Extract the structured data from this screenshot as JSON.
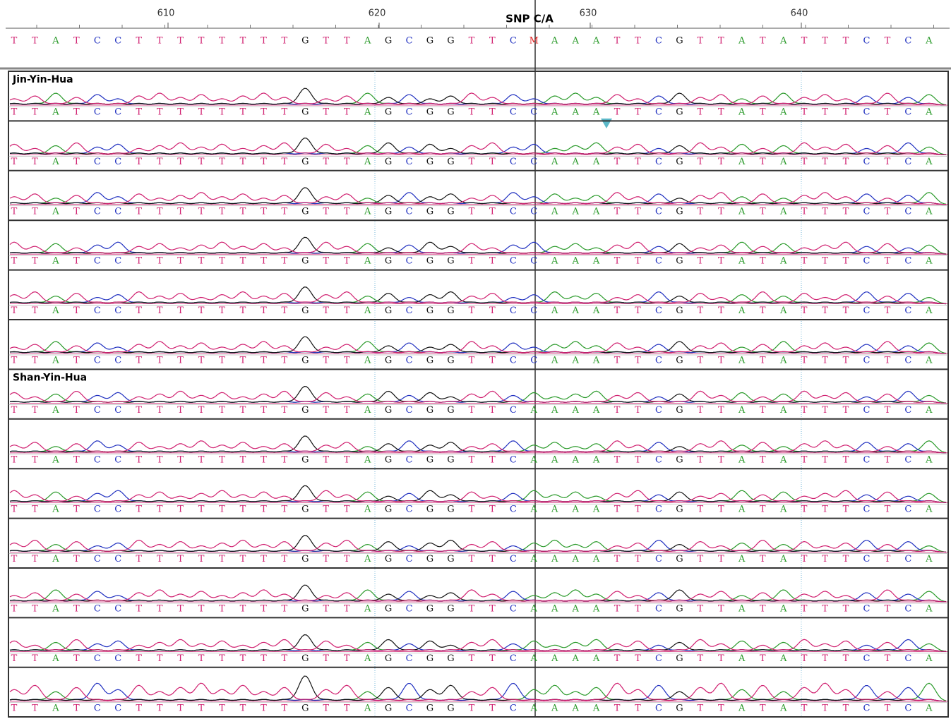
{
  "ruler": {
    "ticks": [
      610,
      620,
      630,
      640
    ],
    "snp_label": "SNP C/A"
  },
  "consensus": [
    "T",
    "T",
    "A",
    "T",
    "C",
    "C",
    "T",
    "T",
    "T",
    "T",
    "T",
    "T",
    "T",
    "T",
    "G",
    "T",
    "T",
    "A",
    "G",
    "C",
    "G",
    "G",
    "T",
    "T",
    "C",
    "M",
    "A",
    "A",
    "A",
    "T",
    "T",
    "C",
    "G",
    "T",
    "T",
    "A",
    "T",
    "A",
    "T",
    "T",
    "T",
    "C",
    "T",
    "C",
    "A"
  ],
  "rows": [
    {
      "group": "Jin-Yin-Hua",
      "bases": [
        "T",
        "T",
        "A",
        "T",
        "C",
        "C",
        "T",
        "T",
        "T",
        "T",
        "T",
        "T",
        "T",
        "T",
        "G",
        "T",
        "T",
        "A",
        "G",
        "C",
        "G",
        "G",
        "T",
        "T",
        "C",
        "C",
        "A",
        "A",
        "A",
        "T",
        "T",
        "C",
        "G",
        "T",
        "T",
        "A",
        "T",
        "A",
        "T",
        "T",
        "T",
        "C",
        "T",
        "C",
        "A"
      ]
    },
    {
      "bases": [
        "T",
        "T",
        "A",
        "T",
        "C",
        "C",
        "T",
        "T",
        "T",
        "T",
        "T",
        "T",
        "T",
        "T",
        "G",
        "T",
        "T",
        "A",
        "G",
        "C",
        "G",
        "G",
        "T",
        "T",
        "C",
        "C",
        "A",
        "A",
        "A",
        "T",
        "T",
        "C",
        "G",
        "T",
        "T",
        "A",
        "T",
        "A",
        "T",
        "T",
        "T",
        "C",
        "T",
        "C",
        "A"
      ]
    },
    {
      "bases": [
        "T",
        "T",
        "A",
        "T",
        "C",
        "C",
        "T",
        "T",
        "T",
        "T",
        "T",
        "T",
        "T",
        "T",
        "G",
        "T",
        "T",
        "A",
        "G",
        "C",
        "G",
        "G",
        "T",
        "T",
        "C",
        "C",
        "A",
        "A",
        "A",
        "T",
        "T",
        "C",
        "G",
        "T",
        "T",
        "A",
        "T",
        "A",
        "T",
        "T",
        "T",
        "C",
        "T",
        "C",
        "A"
      ]
    },
    {
      "bases": [
        "T",
        "T",
        "A",
        "T",
        "C",
        "C",
        "T",
        "T",
        "T",
        "T",
        "T",
        "T",
        "T",
        "T",
        "G",
        "T",
        "T",
        "A",
        "G",
        "C",
        "G",
        "G",
        "T",
        "T",
        "C",
        "C",
        "A",
        "A",
        "A",
        "T",
        "T",
        "C",
        "G",
        "T",
        "T",
        "A",
        "T",
        "A",
        "T",
        "T",
        "T",
        "C",
        "T",
        "C",
        "A"
      ]
    },
    {
      "bases": [
        "T",
        "T",
        "A",
        "T",
        "C",
        "C",
        "T",
        "T",
        "T",
        "T",
        "T",
        "T",
        "T",
        "T",
        "G",
        "T",
        "T",
        "A",
        "G",
        "C",
        "G",
        "G",
        "T",
        "T",
        "C",
        "C",
        "A",
        "A",
        "A",
        "T",
        "T",
        "C",
        "G",
        "T",
        "T",
        "A",
        "T",
        "A",
        "T",
        "T",
        "T",
        "C",
        "T",
        "C",
        "A"
      ]
    },
    {
      "bases": [
        "T",
        "T",
        "A",
        "T",
        "C",
        "C",
        "T",
        "T",
        "T",
        "T",
        "T",
        "T",
        "T",
        "T",
        "G",
        "T",
        "T",
        "A",
        "G",
        "C",
        "G",
        "G",
        "T",
        "T",
        "C",
        "C",
        "A",
        "A",
        "A",
        "T",
        "T",
        "C",
        "G",
        "T",
        "T",
        "A",
        "T",
        "A",
        "T",
        "T",
        "T",
        "C",
        "T",
        "C",
        "A"
      ]
    },
    {
      "group": "Shan-Yin-Hua",
      "bases": [
        "T",
        "T",
        "A",
        "T",
        "C",
        "C",
        "T",
        "T",
        "T",
        "T",
        "T",
        "T",
        "T",
        "T",
        "G",
        "T",
        "T",
        "A",
        "G",
        "C",
        "G",
        "G",
        "T",
        "T",
        "C",
        "A",
        "A",
        "A",
        "A",
        "T",
        "T",
        "C",
        "G",
        "T",
        "T",
        "A",
        "T",
        "A",
        "T",
        "T",
        "T",
        "C",
        "T",
        "C",
        "A"
      ]
    },
    {
      "bases": [
        "T",
        "T",
        "A",
        "T",
        "C",
        "C",
        "T",
        "T",
        "T",
        "T",
        "T",
        "T",
        "T",
        "T",
        "G",
        "T",
        "T",
        "A",
        "G",
        "C",
        "G",
        "G",
        "T",
        "T",
        "C",
        "A",
        "A",
        "A",
        "A",
        "T",
        "T",
        "C",
        "G",
        "T",
        "T",
        "A",
        "T",
        "A",
        "T",
        "T",
        "T",
        "C",
        "T",
        "C",
        "A"
      ]
    },
    {
      "bases": [
        "T",
        "T",
        "A",
        "T",
        "C",
        "C",
        "T",
        "T",
        "T",
        "T",
        "T",
        "T",
        "T",
        "T",
        "G",
        "T",
        "T",
        "A",
        "G",
        "C",
        "G",
        "G",
        "T",
        "T",
        "C",
        "A",
        "A",
        "A",
        "A",
        "T",
        "T",
        "C",
        "G",
        "T",
        "T",
        "A",
        "T",
        "A",
        "T",
        "T",
        "T",
        "C",
        "T",
        "C",
        "A"
      ]
    },
    {
      "bases": [
        "T",
        "T",
        "A",
        "T",
        "C",
        "C",
        "T",
        "T",
        "T",
        "T",
        "T",
        "T",
        "T",
        "T",
        "G",
        "T",
        "T",
        "A",
        "G",
        "C",
        "G",
        "G",
        "T",
        "T",
        "C",
        "A",
        "A",
        "A",
        "A",
        "T",
        "T",
        "C",
        "G",
        "T",
        "T",
        "A",
        "T",
        "A",
        "T",
        "T",
        "T",
        "C",
        "T",
        "C",
        "A"
      ]
    },
    {
      "bases": [
        "T",
        "T",
        "A",
        "T",
        "C",
        "C",
        "T",
        "T",
        "T",
        "T",
        "T",
        "T",
        "T",
        "T",
        "G",
        "T",
        "T",
        "A",
        "G",
        "C",
        "G",
        "G",
        "T",
        "T",
        "C",
        "A",
        "A",
        "A",
        "A",
        "T",
        "T",
        "C",
        "G",
        "T",
        "T",
        "A",
        "T",
        "A",
        "T",
        "T",
        "T",
        "C",
        "T",
        "C",
        "A"
      ]
    },
    {
      "bases": [
        "T",
        "T",
        "A",
        "T",
        "C",
        "C",
        "T",
        "T",
        "T",
        "T",
        "T",
        "T",
        "T",
        "T",
        "G",
        "T",
        "T",
        "A",
        "G",
        "C",
        "G",
        "G",
        "T",
        "T",
        "C",
        "A",
        "A",
        "A",
        "A",
        "T",
        "T",
        "C",
        "G",
        "T",
        "T",
        "A",
        "T",
        "A",
        "T",
        "T",
        "T",
        "C",
        "T",
        "C",
        "A"
      ]
    },
    {
      "bases": [
        "T",
        "T",
        "A",
        "T",
        "C",
        "C",
        "T",
        "T",
        "T",
        "T",
        "T",
        "T",
        "T",
        "T",
        "G",
        "T",
        "T",
        "A",
        "G",
        "C",
        "G",
        "G",
        "T",
        "T",
        "C",
        "A",
        "A",
        "A",
        "A",
        "T",
        "T",
        "C",
        "G",
        "T",
        "T",
        "A",
        "T",
        "A",
        "T",
        "T",
        "T",
        "C",
        "T",
        "C",
        "A"
      ]
    }
  ]
}
